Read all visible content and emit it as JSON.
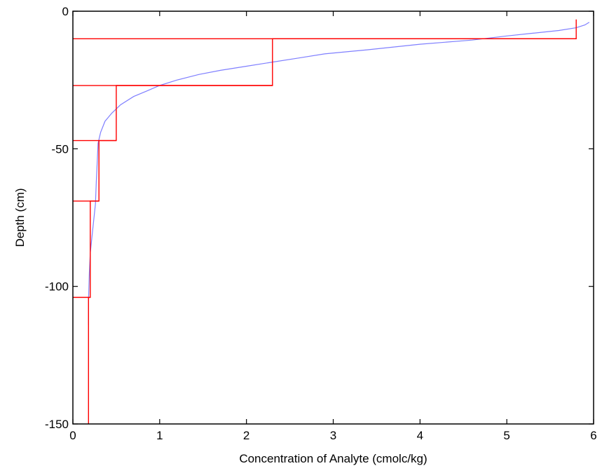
{
  "chart_data": {
    "type": "line",
    "title": "",
    "xlabel": "Concentration of Analyte (cmolc/kg)",
    "ylabel": "Depth (cm)",
    "xlim": [
      0,
      6
    ],
    "ylim": [
      -150,
      0
    ],
    "xticks": [
      0,
      1,
      2,
      3,
      4,
      5,
      6
    ],
    "yticks": [
      0,
      -50,
      -100,
      -150
    ],
    "grid": false,
    "legend": "none",
    "series": [
      {
        "color": "#7f7fff",
        "style": "continuous profile",
        "x": [
          5.95,
          5.9,
          5.8,
          5.6,
          5.3,
          5.0,
          4.6,
          4.0,
          3.4,
          2.9,
          2.6,
          2.3,
          2.0,
          1.7,
          1.45,
          1.2,
          1.0,
          0.85,
          0.7,
          0.55,
          0.45,
          0.37,
          0.32,
          0.29,
          0.28,
          0.27,
          0.26,
          0.24,
          0.22,
          0.2,
          0.19,
          0.18,
          0.18
        ],
        "y": [
          -4,
          -5,
          -6,
          -7,
          -8,
          -9,
          -10.5,
          -12,
          -14,
          -15.5,
          -17,
          -18.5,
          -20,
          -21.5,
          -23,
          -25,
          -27,
          -29,
          -31,
          -34,
          -37,
          -40,
          -44,
          -48,
          -55,
          -62,
          -70,
          -76,
          -82,
          -88,
          -95,
          -105,
          -114
        ]
      },
      {
        "color": "#ff0000",
        "style": "layer step",
        "x": [
          5.8,
          5.8,
          2.3,
          2.3,
          0.5,
          0.5,
          0.3,
          0.3,
          0.2,
          0.2,
          0.18,
          0.18
        ],
        "y": [
          -3,
          -10,
          -10,
          -27,
          -27,
          -47,
          -47,
          -69,
          -69,
          -104,
          -104,
          -150
        ]
      }
    ],
    "layer_boundaries": [
      {
        "y": -10,
        "x_end": 5.8
      },
      {
        "y": -27,
        "x_end": 2.3
      },
      {
        "y": -47,
        "x_end": 0.5
      },
      {
        "y": -69,
        "x_end": 0.3
      },
      {
        "y": -104,
        "x_end": 0.2
      }
    ]
  }
}
